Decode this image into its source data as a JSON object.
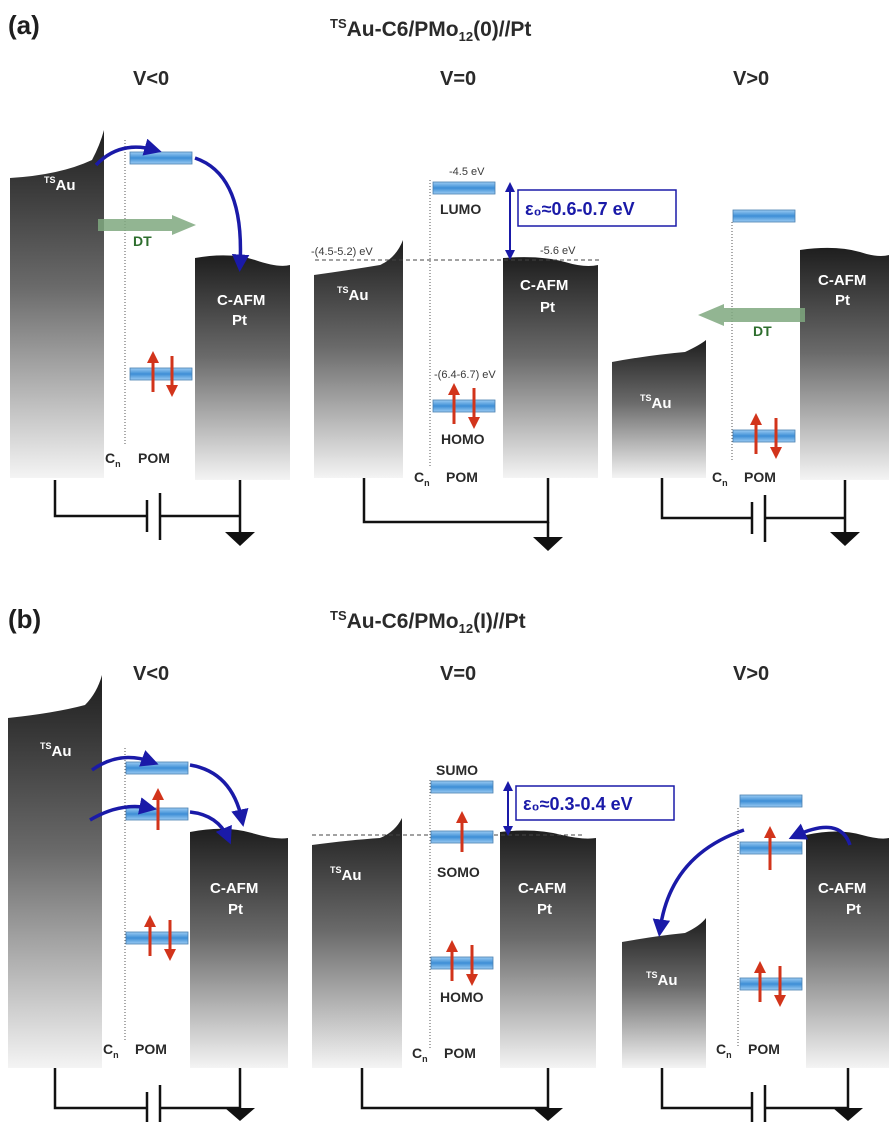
{
  "panels": {
    "a": {
      "label": "(a)",
      "title_main": "Au-C6/PMo",
      "title_prefix": "TS",
      "title_sub": "12",
      "title_tail": "(0)//Pt",
      "cases": {
        "neg": {
          "bias": "V<0",
          "dt": "DT"
        },
        "zero": {
          "bias": "V=0",
          "lumo_energy": "-4.5 eV",
          "lumo_label": "LUMO",
          "homo_energy": "-(6.4-6.7) eV",
          "homo_label": "HOMO",
          "au_fermi": "-(4.5-5.2) eV",
          "pt_fermi": "-5.6 eV",
          "epsilon": "ε₀≈0.6-0.7 eV"
        },
        "pos": {
          "bias": "V>0",
          "dt": "DT"
        }
      }
    },
    "b": {
      "label": "(b)",
      "title_main": "Au-C6/PMo",
      "title_prefix": "TS",
      "title_sub": "12",
      "title_tail": "(I)//Pt",
      "cases": {
        "neg": {
          "bias": "V<0"
        },
        "zero": {
          "bias": "V=0",
          "sumo_label": "SUMO",
          "somo_label": "SOMO",
          "homo_label": "HOMO",
          "epsilon": "ε₀≈0.3-0.4 eV"
        },
        "pos": {
          "bias": "V>0"
        }
      }
    }
  },
  "electrodes": {
    "au_prefix": "TS",
    "au_label": "Au",
    "pt_label_line1": "C-AFM",
    "pt_label_line2": "Pt"
  },
  "positions": {
    "cn_base": "C",
    "cn_sub": "n",
    "pom": "POM"
  },
  "colors": {
    "electrode_top": "#1e1e1e",
    "electrode_bottom": "#f4f4f4",
    "orbital": "#6aaee3",
    "spin_arrow": "#d2341b",
    "transfer_arrow": "#1a1aa8",
    "dt_arrow": "#7fa87f"
  },
  "icons": {
    "orbital": "orbital-level-bar",
    "spin": "spin-up-down-arrows",
    "transfer": "electron-transfer-arrow",
    "ground": "ground-symbol",
    "battery": "battery-symbol"
  }
}
